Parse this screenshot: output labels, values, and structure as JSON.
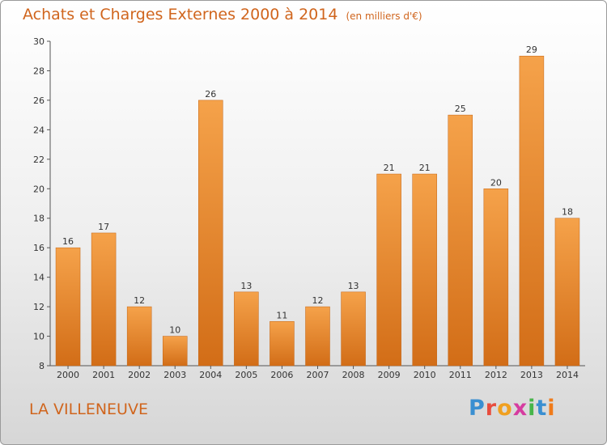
{
  "chart_data": {
    "type": "bar",
    "title": "Achats et Charges Externes 2000 à 2014",
    "unit": "(en milliers d'€)",
    "categories": [
      "2000",
      "2001",
      "2002",
      "2003",
      "2004",
      "2005",
      "2006",
      "2007",
      "2008",
      "2009",
      "2010",
      "2011",
      "2012",
      "2013",
      "2014"
    ],
    "values": [
      16,
      17,
      12,
      10,
      26,
      13,
      11,
      12,
      13,
      21,
      21,
      25,
      20,
      29,
      18
    ],
    "ylim": [
      8,
      30
    ],
    "yticks": [
      8,
      10,
      12,
      14,
      16,
      18,
      20,
      22,
      24,
      26,
      28,
      30
    ],
    "grid": false,
    "bar_color": "#f08a2c"
  },
  "commune": "LA VILLENEUVE",
  "logo": "Proxiti"
}
